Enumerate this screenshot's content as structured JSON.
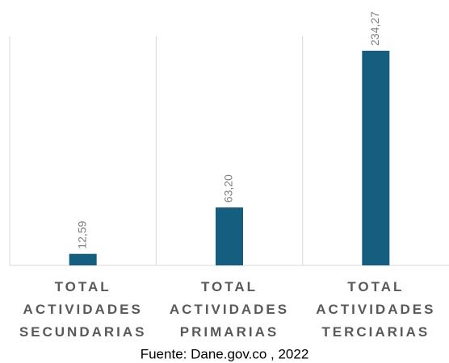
{
  "chart_data": {
    "type": "bar",
    "categories": [
      "TOTAL ACTIVIDADES SECUNDARIAS",
      "TOTAL ACTIVIDADES PRIMARIAS",
      "TOTAL ACTIVIDADES TERCIARIAS"
    ],
    "values": [
      12.59,
      63.2,
      234.27
    ],
    "value_labels": [
      "12,59",
      "63,20",
      "234,27"
    ],
    "color": "#165e7f",
    "ylim": [
      0,
      250
    ],
    "source": "Fuente: Dane.gov.co , 2022"
  }
}
